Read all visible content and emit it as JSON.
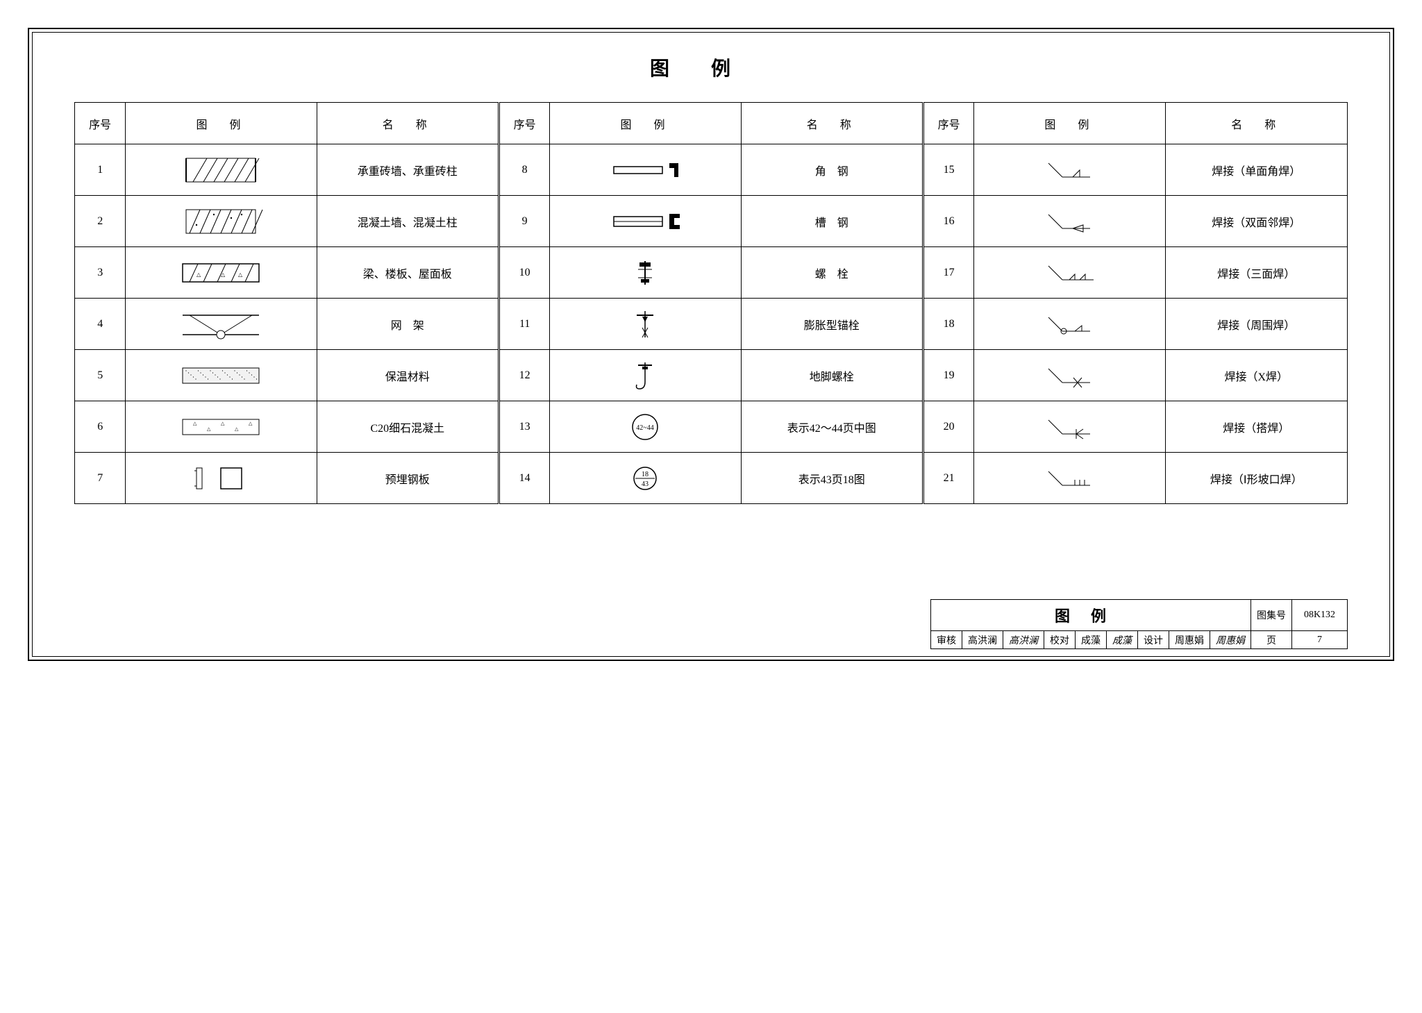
{
  "title": "图例",
  "columns": {
    "num": "序号",
    "symbol": "图　例",
    "name": "名　称"
  },
  "rows": [
    {
      "num": "1",
      "name": "承重砖墙、承重砖柱",
      "icon": "hatch-diag"
    },
    {
      "num": "2",
      "name": "混凝土墙、混凝土柱",
      "icon": "hatch-concrete"
    },
    {
      "num": "3",
      "name": "梁、楼板、屋面板",
      "icon": "hatch-slab"
    },
    {
      "num": "4",
      "name": "网　架",
      "icon": "truss"
    },
    {
      "num": "5",
      "name": "保温材料",
      "icon": "insulation"
    },
    {
      "num": "6",
      "name": "C20细石混凝土",
      "icon": "fine-concrete"
    },
    {
      "num": "7",
      "name": "预埋钢板",
      "icon": "embed-plate"
    },
    {
      "num": "8",
      "name": "角　钢",
      "icon": "angle-steel"
    },
    {
      "num": "9",
      "name": "槽　钢",
      "icon": "channel-steel"
    },
    {
      "num": "10",
      "name": "螺　栓",
      "icon": "bolt"
    },
    {
      "num": "11",
      "name": "膨胀型锚栓",
      "icon": "expansion-anchor"
    },
    {
      "num": "12",
      "name": "地脚螺栓",
      "icon": "anchor-bolt"
    },
    {
      "num": "13",
      "name": "表示42～44页中图",
      "icon": "circle-range",
      "text": "42~44"
    },
    {
      "num": "14",
      "name": "表示43页18图",
      "icon": "circle-frac",
      "text": "18/43"
    },
    {
      "num": "15",
      "name": "焊接（单面角焊）",
      "icon": "weld-tri"
    },
    {
      "num": "16",
      "name": "焊接（双面邻焊）",
      "icon": "weld-tri-open"
    },
    {
      "num": "17",
      "name": "焊接（三面焊）",
      "icon": "weld-double-tri"
    },
    {
      "num": "18",
      "name": "焊接（周围焊）",
      "icon": "weld-circle-tri"
    },
    {
      "num": "19",
      "name": "焊接（X焊）",
      "icon": "weld-x"
    },
    {
      "num": "20",
      "name": "焊接（搭焊）",
      "icon": "weld-k"
    },
    {
      "num": "21",
      "name": "焊接（Ⅰ形坡口焊）",
      "icon": "weld-ii"
    }
  ],
  "titleblock": {
    "main": "图例",
    "set_label": "图集号",
    "set_value": "08K132",
    "page_label": "页",
    "page_value": "7",
    "review_label": "审核",
    "review_name": "高洪澜",
    "check_label": "校对",
    "check_name": "成藻",
    "design_label": "设计",
    "design_name": "周惠娟"
  }
}
